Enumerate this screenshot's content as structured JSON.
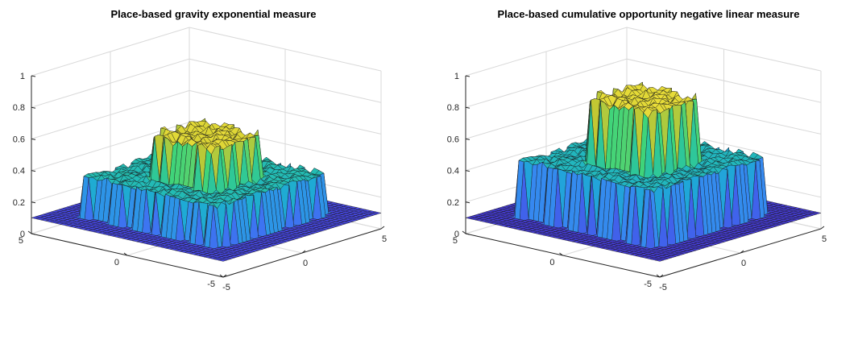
{
  "colors": {
    "background": "#ffffff",
    "axis": "#262626",
    "grid": "#d9d9d9",
    "edge": "#1a1a1a",
    "colormap": [
      "#3e26a8",
      "#4741e0",
      "#3a82f5",
      "#1ea9d6",
      "#25c0aa",
      "#3fd47a",
      "#c8c830",
      "#f6e53c"
    ]
  },
  "chart_data": [
    {
      "type": "surface",
      "title": "Place-based gravity exponential measure",
      "xlabel": "",
      "ylabel": "",
      "zlabel": "",
      "xlim": [
        -5,
        5
      ],
      "ylim": [
        -5,
        5
      ],
      "zlim": [
        0,
        1
      ],
      "x_ticks": [
        "-5",
        "0",
        "5"
      ],
      "y_ticks": [
        "-5",
        "0",
        "5"
      ],
      "z_ticks": [
        "0",
        "0.2",
        "0.4",
        "0.6",
        "0.8",
        "1"
      ],
      "grid": true,
      "levels": {
        "base": 0.1,
        "mid": 0.35,
        "top": 0.6
      },
      "extent": {
        "mid_half_width": 3.5,
        "top_half_width": 1.7
      }
    },
    {
      "type": "surface",
      "title": "Place-based cumulative opportunity negative linear measure",
      "xlabel": "",
      "ylabel": "",
      "zlabel": "",
      "xlim": [
        -5,
        5
      ],
      "ylim": [
        -5,
        5
      ],
      "zlim": [
        0,
        1
      ],
      "x_ticks": [
        "-5",
        "0",
        "5"
      ],
      "y_ticks": [
        "-5",
        "0",
        "5"
      ],
      "z_ticks": [
        "0",
        "0.2",
        "0.4",
        "0.6",
        "0.8",
        "1"
      ],
      "grid": true,
      "levels": {
        "base": 0.1,
        "mid": 0.45,
        "top": 0.83
      },
      "extent": {
        "mid_half_width": 3.5,
        "top_half_width": 1.7
      }
    }
  ]
}
